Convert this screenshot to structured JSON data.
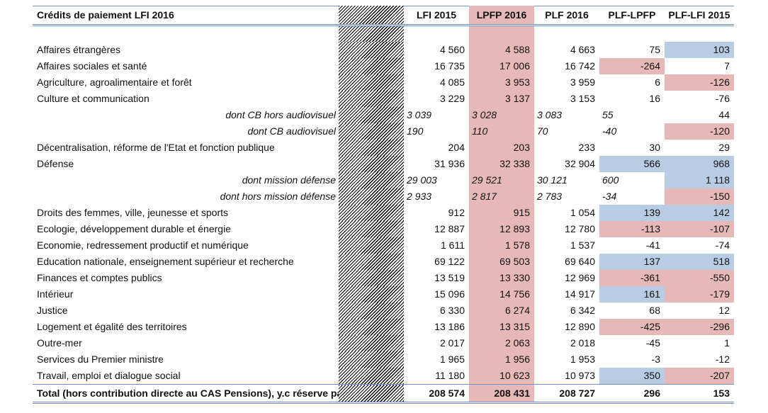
{
  "headers": {
    "label": "Crédits de paiement LFI 2016",
    "lfi2015": "LFI 2015",
    "lpfp2016": "LPFP 2016",
    "plf2016": "PLF 2016",
    "plf_lpfp": "PLF-LPFP",
    "plf_lfi2015": "PLF-LFI 2015"
  },
  "highlight_colors": {
    "pink": "#e6b8b7",
    "blue": "#b8cce4",
    "border": "#6f93c8"
  },
  "rows": [
    {
      "label": "Affaires étrangères",
      "lfi": "4 560",
      "lpfp": "4 588",
      "plf": "4 663",
      "d1": "75",
      "d2": "103"
    },
    {
      "label": "Affaires sociales et santé",
      "lfi": "16 735",
      "lpfp": "17 006",
      "plf": "16 742",
      "d1": "-264",
      "d2": "7"
    },
    {
      "label": "Agriculture, agroalimentaire et forêt",
      "lfi": "4 085",
      "lpfp": "3 953",
      "plf": "3 959",
      "d1": "6",
      "d2": "-126"
    },
    {
      "label": "Culture et communication",
      "lfi": "3 229",
      "lpfp": "3 137",
      "plf": "3 153",
      "d1": "16",
      "d2": "-76"
    },
    {
      "label": "dont CB hors audiovisuel",
      "lfi": "3 039",
      "lpfp": "3 028",
      "plf": "3 083",
      "d1": "55",
      "d2": "44"
    },
    {
      "label": "dont CB audiovisuel",
      "lfi": "190",
      "lpfp": "110",
      "plf": "70",
      "d1": "-40",
      "d2": "-120"
    },
    {
      "label": "Décentralisation, réforme de l'Etat et fonction publique",
      "lfi": "204",
      "lpfp": "203",
      "plf": "233",
      "d1": "30",
      "d2": "29"
    },
    {
      "label": "Défense",
      "lfi": "31 936",
      "lpfp": "32 338",
      "plf": "32 904",
      "d1": "566",
      "d2": "968"
    },
    {
      "label": "dont mission défense",
      "lfi": "29 003",
      "lpfp": "29 521",
      "plf": "30 121",
      "d1": "600",
      "d2": "1 118"
    },
    {
      "label": "dont hors mission défense",
      "lfi": "2 933",
      "lpfp": "2 817",
      "plf": "2 783",
      "d1": "-34",
      "d2": "-150"
    },
    {
      "label": "Droits des femmes, ville, jeunesse et sports",
      "lfi": "912",
      "lpfp": "915",
      "plf": "1 054",
      "d1": "139",
      "d2": "142"
    },
    {
      "label": "Ecologie, développement durable et énergie",
      "lfi": "12 887",
      "lpfp": "12 893",
      "plf": "12 780",
      "d1": "-113",
      "d2": "-107"
    },
    {
      "label": "Economie, redressement productif et numérique",
      "lfi": "1 611",
      "lpfp": "1 578",
      "plf": "1 537",
      "d1": "-41",
      "d2": "-74"
    },
    {
      "label": "Education nationale, enseignement supérieur et recherche",
      "lfi": "69 122",
      "lpfp": "69 503",
      "plf": "69 640",
      "d1": "137",
      "d2": "518"
    },
    {
      "label": "Finances et comptes publics",
      "lfi": "13 519",
      "lpfp": "13 330",
      "plf": "12 969",
      "d1": "-361",
      "d2": "-550"
    },
    {
      "label": "Intérieur",
      "lfi": "15 096",
      "lpfp": "14 756",
      "plf": "14 917",
      "d1": "161",
      "d2": "-179"
    },
    {
      "label": "Justice",
      "lfi": "6 330",
      "lpfp": "6 274",
      "plf": "6 342",
      "d1": "68",
      "d2": "12"
    },
    {
      "label": "Logement et égalité des territoires",
      "lfi": "13 186",
      "lpfp": "13 315",
      "plf": "12 890",
      "d1": "-425",
      "d2": "-296"
    },
    {
      "label": "Outre-mer",
      "lfi": "2 017",
      "lpfp": "2 063",
      "plf": "2 018",
      "d1": "-45",
      "d2": "1"
    },
    {
      "label": "Services du Premier ministre",
      "lfi": "1 965",
      "lpfp": "1 956",
      "plf": "1 953",
      "d1": "-3",
      "d2": "-12"
    },
    {
      "label": "Travail, emploi et dialogue social",
      "lfi": "11 180",
      "lpfp": "10 623",
      "plf": "10 973",
      "d1": "350",
      "d2": "-207"
    }
  ],
  "total": {
    "label": "Total (hors contribution directe au CAS Pensions), y.c réserve parlementa",
    "lfi": "208 574",
    "lpfp": "208 431",
    "plf": "208 727",
    "d1": "296",
    "d2": "153"
  }
}
